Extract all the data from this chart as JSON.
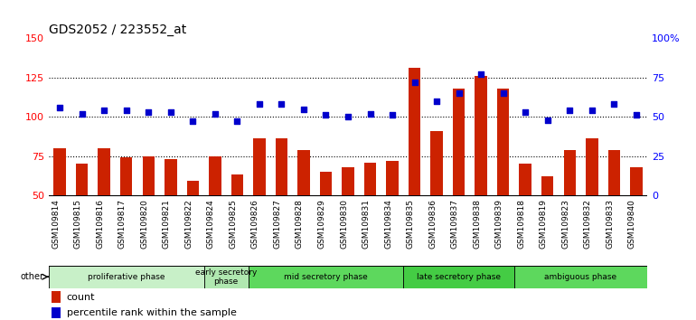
{
  "title": "GDS2052 / 223552_at",
  "categories": [
    "GSM109814",
    "GSM109815",
    "GSM109816",
    "GSM109817",
    "GSM109820",
    "GSM109821",
    "GSM109822",
    "GSM109824",
    "GSM109825",
    "GSM109826",
    "GSM109827",
    "GSM109828",
    "GSM109829",
    "GSM109830",
    "GSM109831",
    "GSM109834",
    "GSM109835",
    "GSM109836",
    "GSM109837",
    "GSM109838",
    "GSM109839",
    "GSM109818",
    "GSM109819",
    "GSM109823",
    "GSM109832",
    "GSM109833",
    "GSM109840"
  ],
  "bar_values": [
    80,
    70,
    80,
    74,
    75,
    73,
    59,
    75,
    63,
    86,
    86,
    79,
    65,
    68,
    71,
    72,
    131,
    91,
    118,
    126,
    118,
    70,
    62,
    79,
    86,
    79,
    68
  ],
  "dot_values": [
    106,
    102,
    104,
    104,
    103,
    103,
    97,
    102,
    97,
    108,
    108,
    105,
    101,
    100,
    102,
    101,
    122,
    110,
    115,
    127,
    115,
    103,
    98,
    104,
    104,
    108,
    101
  ],
  "phases": [
    {
      "label": "proliferative phase",
      "start": 0,
      "end": 7,
      "color": "#c8f0c8"
    },
    {
      "label": "early secretory\nphase",
      "start": 7,
      "end": 9,
      "color": "#b0e8b0"
    },
    {
      "label": "mid secretory phase",
      "start": 9,
      "end": 16,
      "color": "#5dd85d"
    },
    {
      "label": "late secretory phase",
      "start": 16,
      "end": 21,
      "color": "#44cc44"
    },
    {
      "label": "ambiguous phase",
      "start": 21,
      "end": 27,
      "color": "#5dd85d"
    }
  ],
  "bar_color": "#cc2200",
  "dot_color": "#0000cc",
  "ylim_left": [
    50,
    150
  ],
  "ylim_right": [
    0,
    100
  ],
  "yticks_left": [
    50,
    75,
    100,
    125,
    150
  ],
  "yticks_right": [
    0,
    25,
    50,
    75,
    100
  ],
  "ytick_labels_right": [
    "0",
    "25",
    "50",
    "75",
    "100%"
  ],
  "grid_values": [
    75,
    100,
    125
  ],
  "bg_color": "#ffffff",
  "tick_bg_color": "#dddddd"
}
